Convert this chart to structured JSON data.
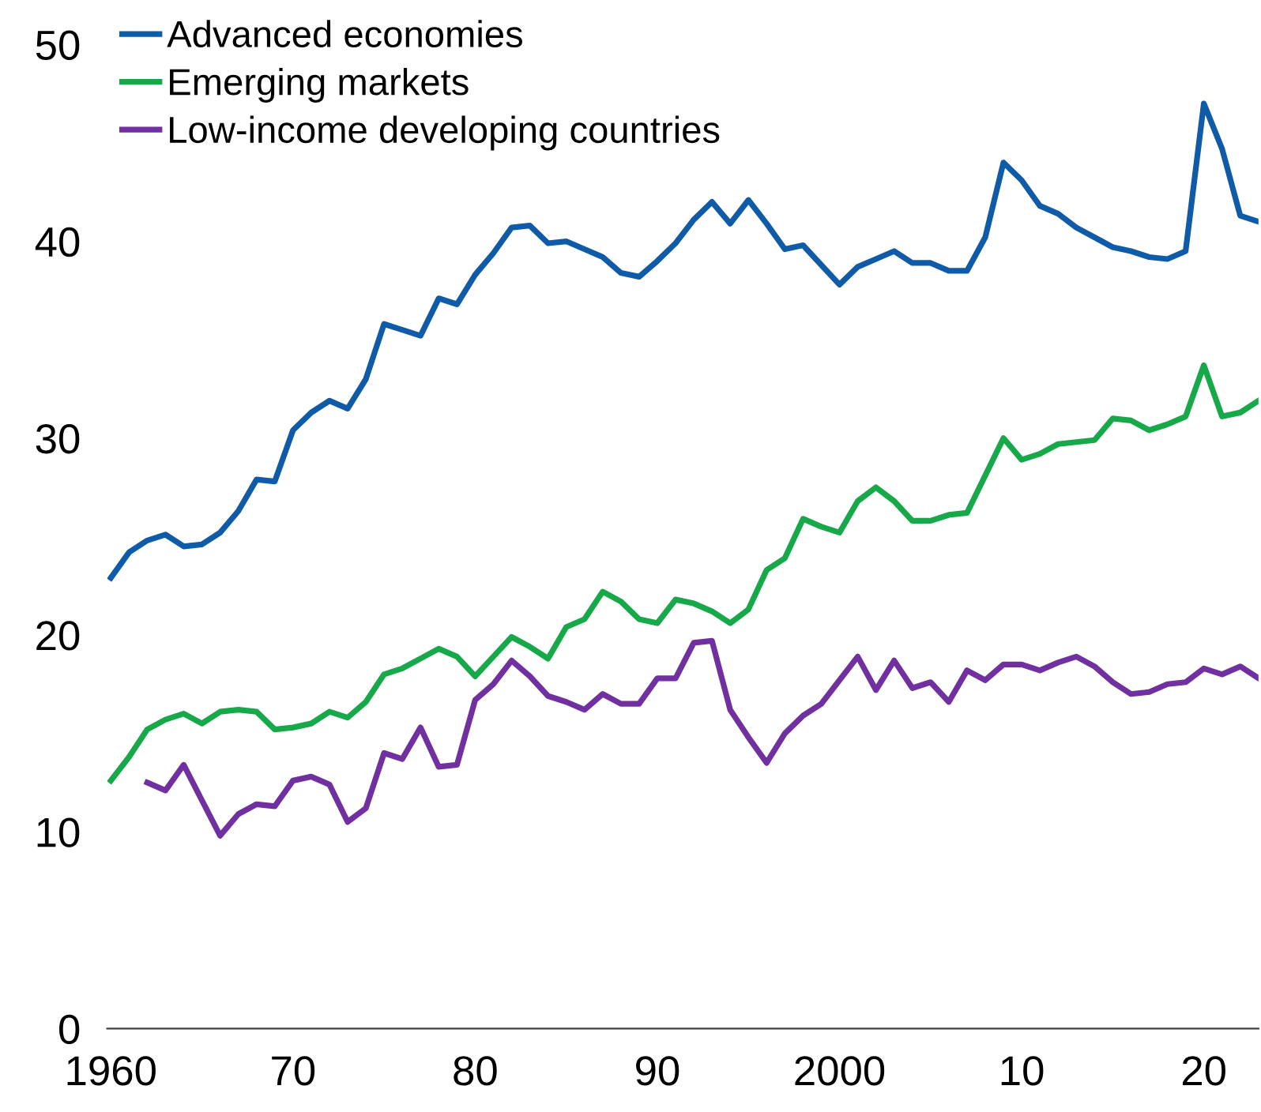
{
  "chart_data": {
    "type": "line",
    "x": [
      1960,
      1961,
      1962,
      1963,
      1964,
      1965,
      1966,
      1967,
      1968,
      1969,
      1970,
      1971,
      1972,
      1973,
      1974,
      1975,
      1976,
      1977,
      1978,
      1979,
      1980,
      1981,
      1982,
      1983,
      1984,
      1985,
      1986,
      1987,
      1988,
      1989,
      1990,
      1991,
      1992,
      1993,
      1994,
      1995,
      1996,
      1997,
      1998,
      1999,
      2000,
      2001,
      2002,
      2003,
      2004,
      2005,
      2006,
      2007,
      2008,
      2009,
      2010,
      2011,
      2012,
      2013,
      2014,
      2015,
      2016,
      2017,
      2018,
      2019,
      2020,
      2021,
      2022,
      2023
    ],
    "series": [
      {
        "name": "Advanced economies",
        "color": "#0f5ba7",
        "values": [
          22.9,
          24.2,
          24.8,
          25.1,
          24.5,
          24.6,
          25.2,
          26.3,
          27.9,
          27.8,
          30.4,
          31.3,
          31.9,
          31.5,
          33.0,
          35.8,
          35.5,
          35.2,
          37.1,
          36.8,
          38.3,
          39.4,
          40.7,
          40.8,
          39.9,
          40.0,
          39.6,
          39.2,
          38.4,
          38.2,
          39.0,
          39.9,
          41.1,
          42.0,
          40.9,
          42.1,
          40.9,
          39.6,
          39.8,
          38.8,
          37.8,
          38.7,
          39.1,
          39.5,
          38.9,
          38.9,
          38.5,
          38.5,
          40.2,
          44.0,
          43.1,
          41.8,
          41.4,
          40.7,
          40.2,
          39.7,
          39.5,
          39.2,
          39.1,
          39.5,
          47.0,
          44.7,
          41.3,
          41.0
        ]
      },
      {
        "name": "Emerging markets",
        "color": "#17a84a",
        "values": [
          12.6,
          13.8,
          15.2,
          15.7,
          16.0,
          15.5,
          16.1,
          16.2,
          16.1,
          15.2,
          15.3,
          15.5,
          16.1,
          15.8,
          16.6,
          18.0,
          18.3,
          18.8,
          19.3,
          18.9,
          17.9,
          18.9,
          19.9,
          19.4,
          18.8,
          20.4,
          20.8,
          22.2,
          21.7,
          20.8,
          20.6,
          21.8,
          21.6,
          21.2,
          20.6,
          21.3,
          23.3,
          23.9,
          25.9,
          25.5,
          25.2,
          26.8,
          27.5,
          26.8,
          25.8,
          25.8,
          26.1,
          26.2,
          28.1,
          30.0,
          28.9,
          29.2,
          29.7,
          29.8,
          29.9,
          31.0,
          30.9,
          30.4,
          30.7,
          31.1,
          33.7,
          31.1,
          31.3,
          31.9
        ]
      },
      {
        "name": "Low-income developing countries",
        "color": "#7030a0",
        "values": [
          null,
          null,
          12.5,
          12.1,
          13.4,
          11.6,
          9.8,
          10.9,
          11.4,
          11.3,
          12.6,
          12.8,
          12.4,
          10.5,
          11.2,
          14.0,
          13.7,
          15.3,
          13.3,
          13.4,
          16.7,
          17.5,
          18.7,
          17.9,
          16.9,
          16.6,
          16.2,
          17.0,
          16.5,
          16.5,
          17.8,
          17.8,
          19.6,
          19.7,
          16.2,
          14.8,
          13.5,
          15.0,
          15.9,
          16.5,
          17.7,
          18.9,
          17.2,
          18.7,
          17.3,
          17.6,
          16.6,
          18.2,
          17.7,
          18.5,
          18.5,
          18.2,
          18.6,
          18.9,
          18.4,
          17.6,
          17.0,
          17.1,
          17.5,
          17.6,
          18.3,
          18.0,
          18.4,
          17.8
        ]
      }
    ],
    "xlim": [
      1959.8,
      2023
    ],
    "xticks": [
      {
        "value": 1960,
        "label": "1960"
      },
      {
        "value": 1970,
        "label": "70"
      },
      {
        "value": 1980,
        "label": "80"
      },
      {
        "value": 1990,
        "label": "90"
      },
      {
        "value": 2000,
        "label": "2000"
      },
      {
        "value": 2010,
        "label": "10"
      },
      {
        "value": 2020,
        "label": "20"
      }
    ],
    "ylim": [
      0,
      50
    ],
    "yticks": [
      0,
      10,
      20,
      30,
      40,
      50
    ],
    "grid": false,
    "legend": "top left",
    "line_style": "solid"
  }
}
